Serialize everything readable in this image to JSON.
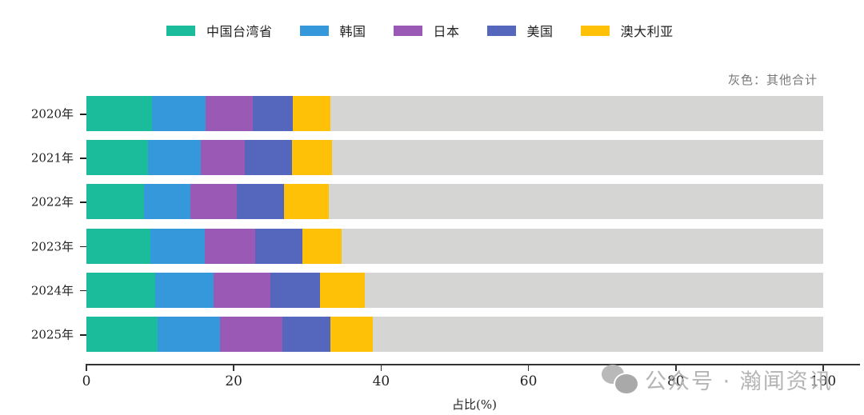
{
  "chart_data": {
    "type": "bar",
    "orientation": "horizontal",
    "stacked": true,
    "title": "",
    "xlabel": "占比(%)",
    "ylabel": "",
    "xlim": [
      0,
      100
    ],
    "xticks": [
      0,
      20,
      40,
      60,
      80,
      100
    ],
    "categories": [
      "2020年",
      "2021年",
      "2022年",
      "2023年",
      "2024年",
      "2025年"
    ],
    "series": [
      {
        "name": "中国台湾省",
        "color": "#1abc9c",
        "values": [
          8.9,
          8.4,
          7.8,
          8.7,
          9.3,
          9.7
        ]
      },
      {
        "name": "韩国",
        "color": "#3498db",
        "values": [
          7.3,
          7.1,
          6.3,
          7.4,
          8.0,
          8.4
        ]
      },
      {
        "name": "日本",
        "color": "#9b59b6",
        "values": [
          6.4,
          6.0,
          6.3,
          6.8,
          7.7,
          8.5
        ]
      },
      {
        "name": "美国",
        "color": "#5567bd",
        "values": [
          5.4,
          6.4,
          6.4,
          6.4,
          6.7,
          6.5
        ]
      },
      {
        "name": "澳大利亚",
        "color": "#ffc107",
        "values": [
          5.1,
          5.4,
          6.1,
          5.3,
          6.1,
          5.8
        ]
      },
      {
        "name": "其他合计",
        "color": "#d5d5d3",
        "values": [
          66.9,
          66.7,
          67.1,
          65.4,
          62.2,
          61.1
        ]
      }
    ],
    "annotation": "灰色：其他合计",
    "legend_position": "top",
    "grid": false
  },
  "legend": [
    {
      "label": "中国台湾省",
      "color": "#1abc9c"
    },
    {
      "label": "韩国",
      "color": "#3498db"
    },
    {
      "label": "日本",
      "color": "#9b59b6"
    },
    {
      "label": "美国",
      "color": "#5567bd"
    },
    {
      "label": "澳大利亚",
      "color": "#ffc107"
    }
  ],
  "note": "灰色：其他合计",
  "xaxis": {
    "label": "占比(%)",
    "ticks": [
      "0",
      "20",
      "40",
      "60",
      "80",
      "100"
    ]
  },
  "watermark": {
    "icon": "wechat-icon",
    "text": "公众号 · 瀚闻资讯"
  }
}
